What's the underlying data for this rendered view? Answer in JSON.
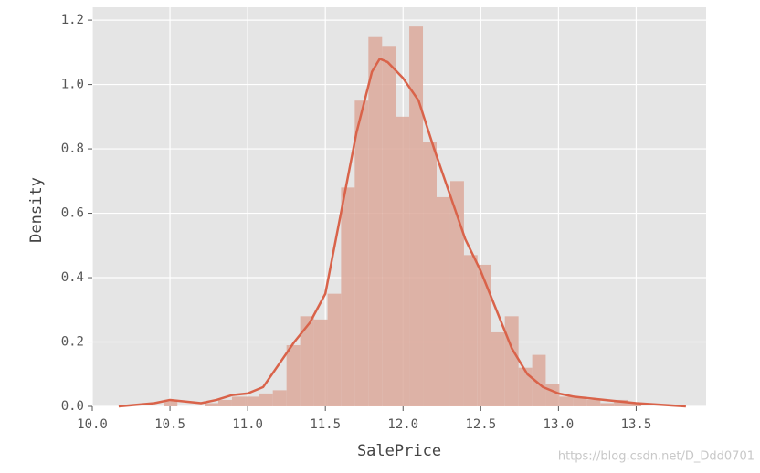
{
  "chart_data": {
    "type": "histogram",
    "xlabel": "SalePrice",
    "ylabel": "Density",
    "annotation": "https://blog.csdn.net/D_Ddd0701",
    "bins": [
      10.46,
      10.548,
      10.636,
      10.723,
      10.811,
      10.899,
      10.987,
      11.075,
      11.162,
      11.25,
      11.338,
      11.426,
      11.514,
      11.601,
      11.689,
      11.777,
      11.865,
      11.953,
      12.04,
      12.128,
      12.216,
      12.304,
      12.392,
      12.479,
      12.567,
      12.655,
      12.743,
      12.831,
      12.918,
      13.006,
      13.094,
      13.182,
      13.27,
      13.357,
      13.445,
      13.533
    ],
    "values": [
      0.02,
      0.0,
      0.0,
      0.01,
      0.02,
      0.03,
      0.03,
      0.04,
      0.05,
      0.19,
      0.28,
      0.27,
      0.35,
      0.68,
      0.95,
      1.15,
      1.12,
      0.9,
      1.18,
      0.82,
      0.65,
      0.7,
      0.47,
      0.44,
      0.23,
      0.28,
      0.12,
      0.16,
      0.07,
      0.03,
      0.03,
      0.02,
      0.01,
      0.02,
      0.01
    ],
    "color": "#dca99b",
    "kde": {
      "color": "#d9634a",
      "x": [
        10.17,
        10.4,
        10.5,
        10.6,
        10.7,
        10.8,
        10.9,
        11.0,
        11.1,
        11.2,
        11.3,
        11.4,
        11.5,
        11.6,
        11.7,
        11.8,
        11.85,
        11.9,
        12.0,
        12.1,
        12.2,
        12.3,
        12.4,
        12.5,
        12.6,
        12.7,
        12.8,
        12.9,
        13.0,
        13.1,
        13.3,
        13.5,
        13.82
      ],
      "y": [
        0.0,
        0.01,
        0.02,
        0.015,
        0.01,
        0.02,
        0.035,
        0.04,
        0.06,
        0.13,
        0.2,
        0.26,
        0.35,
        0.6,
        0.85,
        1.04,
        1.08,
        1.07,
        1.02,
        0.95,
        0.8,
        0.66,
        0.52,
        0.42,
        0.3,
        0.18,
        0.1,
        0.06,
        0.04,
        0.03,
        0.02,
        0.01,
        0.0
      ]
    },
    "xlim": [
      10.0,
      13.95
    ],
    "ylim": [
      0,
      1.24
    ],
    "xticks": [
      {
        "value": 10.0,
        "label": "10.0"
      },
      10.5,
      {
        "value": 11.0,
        "label": "11.0"
      },
      11.5,
      {
        "value": 12.0,
        "label": "12.0"
      },
      12.5,
      {
        "value": 13.0,
        "label": "13.0"
      },
      13.5
    ],
    "yticks": [
      {
        "value": 0.0,
        "label": "0.0"
      },
      0.2,
      0.4,
      0.6,
      0.8,
      {
        "value": 1.0,
        "label": "1.0"
      },
      1.2
    ],
    "grid": true,
    "background": "#e5e5e5"
  }
}
